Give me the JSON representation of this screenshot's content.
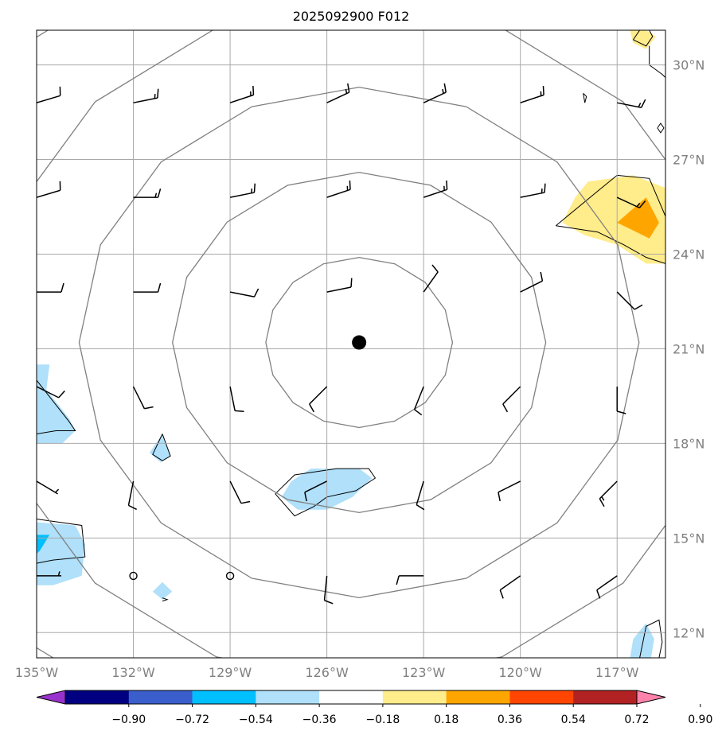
{
  "chart_data": {
    "type": "heatmap",
    "title": "2025092900 F012",
    "lon_range": [
      -135,
      -115.5
    ],
    "lat_range": [
      11.2,
      31.1
    ],
    "center": {
      "lon": -125,
      "lat": 21.2
    },
    "grid": true,
    "x_ticks": [
      -135,
      -132,
      -129,
      -126,
      -123,
      -120,
      -117
    ],
    "x_tick_labels": [
      "135°W",
      "132°W",
      "129°W",
      "126°W",
      "123°W",
      "120°W",
      "117°W"
    ],
    "y_ticks": [
      12,
      15,
      18,
      21,
      24,
      27,
      30
    ],
    "y_tick_labels": [
      "12°N",
      "15°N",
      "18°N",
      "21°N",
      "24°N",
      "27°N",
      "30°N"
    ],
    "range_rings_km": [
      300,
      600,
      900,
      1200,
      1500
    ],
    "colorbar": {
      "orientation": "horizontal",
      "extend": "both",
      "levels": [
        -0.9,
        -0.72,
        -0.54,
        -0.36,
        -0.18,
        0.18,
        0.36,
        0.54,
        0.72,
        0.9
      ],
      "tick_labels": [
        "−0.90",
        "−0.72",
        "−0.54",
        "−0.36",
        "−0.18",
        "0.18",
        "0.36",
        "0.54",
        "0.72",
        "0.90"
      ],
      "colors": [
        "#9932cc",
        "#000080",
        "#3a5fcd",
        "#00bfff",
        "#b0e0fa",
        "#ffffff",
        "#ffec8b",
        "#ffa500",
        "#ff4500",
        "#b22222",
        "#ff82ab"
      ]
    },
    "filled_regions": [
      {
        "value_bin": "-0.36 to -0.18",
        "points": [
          [
            -135,
            20.5
          ],
          [
            -134.6,
            20.5
          ],
          [
            -134.7,
            19.7
          ],
          [
            -134.0,
            18.8
          ],
          [
            -133.8,
            18.4
          ],
          [
            -134.2,
            18.0
          ],
          [
            -135,
            18.0
          ]
        ]
      },
      {
        "value_bin": "-0.36 to -0.18",
        "points": [
          [
            -131.1,
            18.3
          ],
          [
            -130.85,
            17.6
          ],
          [
            -131.15,
            17.4
          ],
          [
            -131.5,
            17.7
          ]
        ]
      },
      {
        "value_bin": "-0.36 to -0.18",
        "points": [
          [
            -127.1,
            16.8
          ],
          [
            -126.5,
            17.2
          ],
          [
            -125.0,
            17.2
          ],
          [
            -124.6,
            16.9
          ],
          [
            -125.2,
            16.3
          ],
          [
            -126.0,
            15.9
          ],
          [
            -126.9,
            15.9
          ],
          [
            -127.4,
            16.3
          ]
        ]
      },
      {
        "value_bin": "-0.36 to -0.18",
        "points": [
          [
            -135,
            15.5
          ],
          [
            -133.8,
            15.4
          ],
          [
            -133.5,
            14.8
          ],
          [
            -133.6,
            13.8
          ],
          [
            -134.5,
            13.5
          ],
          [
            -135,
            13.5
          ]
        ]
      },
      {
        "value_bin": "-0.54 to -0.36",
        "points": [
          [
            -135,
            15.1
          ],
          [
            -134.6,
            15.1
          ],
          [
            -134.9,
            14.6
          ],
          [
            -135,
            14.5
          ]
        ]
      },
      {
        "value_bin": "-0.36 to -0.18",
        "points": [
          [
            -131.1,
            13.6
          ],
          [
            -130.8,
            13.3
          ],
          [
            -131.1,
            13.05
          ],
          [
            -131.4,
            13.3
          ]
        ]
      },
      {
        "value_bin": "-0.36 to -0.18",
        "points": [
          [
            -116.1,
            12.3
          ],
          [
            -115.85,
            11.8
          ],
          [
            -115.95,
            11.2
          ],
          [
            -116.6,
            11.2
          ],
          [
            -116.5,
            11.8
          ]
        ]
      },
      {
        "value_bin": "0.18 to 0.36",
        "points": [
          [
            -117.9,
            26.3
          ],
          [
            -116.5,
            26.5
          ],
          [
            -115.5,
            26.1
          ],
          [
            -115.5,
            23.7
          ],
          [
            -116.1,
            23.7
          ],
          [
            -117.0,
            24.3
          ],
          [
            -118.0,
            24.6
          ],
          [
            -118.7,
            25.0
          ],
          [
            -118.3,
            25.8
          ]
        ]
      },
      {
        "value_bin": "0.36 to 0.54",
        "points": [
          [
            -116.1,
            25.8
          ],
          [
            -115.7,
            25.0
          ],
          [
            -116.0,
            24.5
          ],
          [
            -116.6,
            24.8
          ],
          [
            -117.0,
            25.0
          ]
        ]
      },
      {
        "value_bin": "0.18 to 0.36",
        "points": [
          [
            -116.1,
            31.1
          ],
          [
            -115.8,
            30.9
          ],
          [
            -116.1,
            30.5
          ],
          [
            -116.5,
            30.7
          ],
          [
            -116.6,
            31.1
          ]
        ]
      }
    ],
    "contour_lines": [
      [
        [
          -135,
          20.0
        ],
        [
          -134.0,
          18.7
        ],
        [
          -133.8,
          18.4
        ],
        [
          -134.4,
          18.4
        ],
        [
          -135,
          18.3
        ]
      ],
      [
        [
          -131.1,
          18.3
        ],
        [
          -130.85,
          17.6
        ],
        [
          -131.1,
          17.45
        ],
        [
          -131.4,
          17.65
        ],
        [
          -131.1,
          18.3
        ]
      ],
      [
        [
          -127.6,
          16.4
        ],
        [
          -127.0,
          17.0
        ],
        [
          -125.7,
          17.2
        ],
        [
          -124.7,
          17.2
        ],
        [
          -124.5,
          16.9
        ],
        [
          -125.1,
          16.5
        ],
        [
          -126.0,
          16.3
        ],
        [
          -126.4,
          16.0
        ],
        [
          -127.0,
          15.7
        ],
        [
          -127.6,
          16.4
        ]
      ],
      [
        [
          -135,
          15.6
        ],
        [
          -133.6,
          15.4
        ],
        [
          -133.5,
          14.4
        ],
        [
          -134.5,
          14.3
        ],
        [
          -135,
          14.2
        ]
      ],
      [
        [
          -118.9,
          24.9
        ],
        [
          -117.6,
          26.0
        ],
        [
          -117.0,
          26.5
        ],
        [
          -116.0,
          26.4
        ],
        [
          -115.5,
          25.2
        ]
      ],
      [
        [
          -118.9,
          24.9
        ],
        [
          -117.6,
          24.7
        ],
        [
          -116.8,
          24.3
        ],
        [
          -116.1,
          23.9
        ],
        [
          -115.5,
          23.7
        ]
      ],
      [
        [
          -116.3,
          11.2
        ],
        [
          -116.1,
          12.2
        ],
        [
          -115.7,
          12.4
        ],
        [
          -115.6,
          11.7
        ],
        [
          -115.7,
          11.2
        ]
      ],
      [
        [
          -116.3,
          31.1
        ],
        [
          -116.5,
          30.8
        ],
        [
          -116.1,
          30.6
        ],
        [
          -115.9,
          30.9
        ],
        [
          -116.0,
          31.1
        ]
      ],
      [
        [
          -116.0,
          30.6
        ],
        [
          -116.0,
          30.0
        ],
        [
          -115.6,
          29.7
        ],
        [
          -115.5,
          29.6
        ]
      ],
      [
        [
          -118.05,
          29.1
        ],
        [
          -118.0,
          28.8
        ],
        [
          -117.95,
          29.0
        ],
        [
          -118.05,
          29.1
        ]
      ],
      [
        [
          -115.75,
          28.0
        ],
        [
          -115.65,
          27.85
        ],
        [
          -115.55,
          28.0
        ],
        [
          -115.65,
          28.15
        ],
        [
          -115.75,
          28.0
        ]
      ],
      [
        [
          -131.1,
          13.1
        ],
        [
          -130.95,
          13.05
        ],
        [
          -131.1,
          13.0
        ]
      ]
    ],
    "wind_barbs": [
      {
        "lon": -135,
        "lat": 28.8,
        "u": -10,
        "v": -3
      },
      {
        "lon": -132,
        "lat": 28.8,
        "u": -15,
        "v": -3
      },
      {
        "lon": -129,
        "lat": 28.8,
        "u": -15,
        "v": -5
      },
      {
        "lon": -126,
        "lat": 28.8,
        "u": -15,
        "v": -7
      },
      {
        "lon": -123,
        "lat": 28.8,
        "u": -15,
        "v": -7
      },
      {
        "lon": -120,
        "lat": 28.8,
        "u": -15,
        "v": -5
      },
      {
        "lon": -117,
        "lat": 28.8,
        "u": -15,
        "v": 3
      },
      {
        "lon": -135,
        "lat": 25.8,
        "u": -10,
        "v": -3
      },
      {
        "lon": -132,
        "lat": 25.8,
        "u": -15,
        "v": 0
      },
      {
        "lon": -129,
        "lat": 25.8,
        "u": -15,
        "v": -3
      },
      {
        "lon": -126,
        "lat": 25.8,
        "u": -15,
        "v": -5
      },
      {
        "lon": -123,
        "lat": 25.8,
        "u": -15,
        "v": -5
      },
      {
        "lon": -120,
        "lat": 25.8,
        "u": -15,
        "v": -3
      },
      {
        "lon": -117,
        "lat": 25.8,
        "u": -15,
        "v": 7
      },
      {
        "lon": -135,
        "lat": 22.8,
        "u": -10,
        "v": 0
      },
      {
        "lon": -132,
        "lat": 22.8,
        "u": -10,
        "v": 0
      },
      {
        "lon": -129,
        "lat": 22.8,
        "u": -10,
        "v": 2
      },
      {
        "lon": -126,
        "lat": 22.8,
        "u": -10,
        "v": -2
      },
      {
        "lon": -123,
        "lat": 22.8,
        "u": -5,
        "v": -7
      },
      {
        "lon": -120,
        "lat": 22.8,
        "u": -10,
        "v": -5
      },
      {
        "lon": -117,
        "lat": 22.8,
        "u": -7,
        "v": 7
      },
      {
        "lon": -135,
        "lat": 19.8,
        "u": -10,
        "v": 5
      },
      {
        "lon": -132,
        "lat": 19.8,
        "u": -5,
        "v": 10
      },
      {
        "lon": -129,
        "lat": 19.8,
        "u": -2,
        "v": 10
      },
      {
        "lon": -126,
        "lat": 19.8,
        "u": 7,
        "v": 7
      },
      {
        "lon": -123,
        "lat": 19.8,
        "u": 4,
        "v": 10
      },
      {
        "lon": -120,
        "lat": 19.8,
        "u": 7,
        "v": 7
      },
      {
        "lon": -117,
        "lat": 19.8,
        "u": 0,
        "v": 10
      },
      {
        "lon": -135,
        "lat": 16.8,
        "u": -5,
        "v": 3
      },
      {
        "lon": -132,
        "lat": 16.8,
        "u": 2,
        "v": 10
      },
      {
        "lon": -129,
        "lat": 16.8,
        "u": -5,
        "v": 10
      },
      {
        "lon": -126,
        "lat": 16.8,
        "u": 10,
        "v": 5
      },
      {
        "lon": -123,
        "lat": 16.8,
        "u": 3,
        "v": 10
      },
      {
        "lon": -120,
        "lat": 16.8,
        "u": 10,
        "v": 5
      },
      {
        "lon": -117,
        "lat": 16.8,
        "u": 10,
        "v": 10
      },
      {
        "lon": -135,
        "lat": 13.8,
        "u": -5,
        "v": 0
      },
      {
        "lon": -132,
        "lat": 13.8,
        "u": 0,
        "v": 0
      },
      {
        "lon": -129,
        "lat": 13.8,
        "u": 0,
        "v": 0
      },
      {
        "lon": -126,
        "lat": 13.8,
        "u": 1,
        "v": 10
      },
      {
        "lon": -123,
        "lat": 13.8,
        "u": 10,
        "v": 0
      },
      {
        "lon": -120,
        "lat": 13.8,
        "u": 10,
        "v": 7
      },
      {
        "lon": -117,
        "lat": 13.8,
        "u": 10,
        "v": 7
      }
    ]
  }
}
